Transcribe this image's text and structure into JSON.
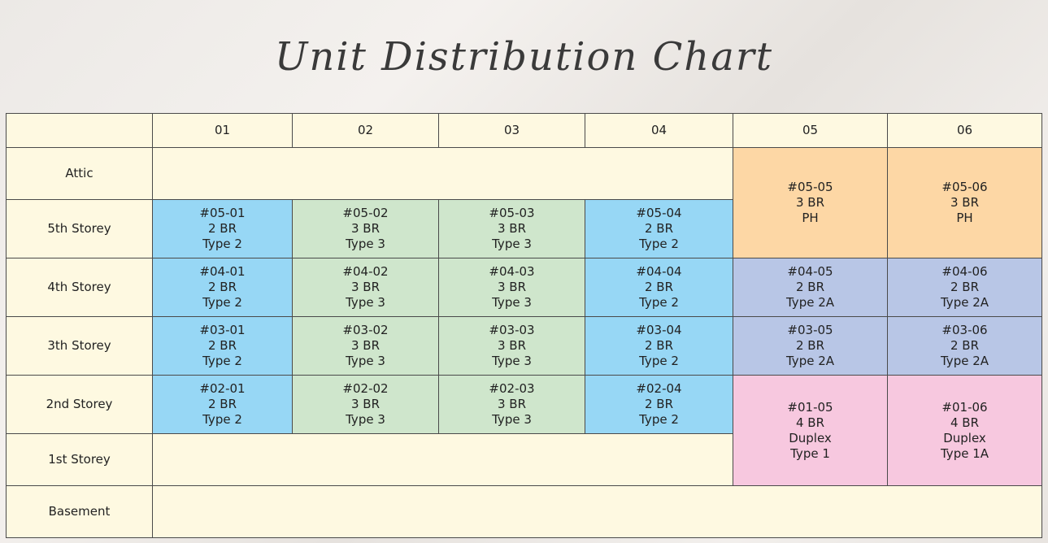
{
  "title": "Unit Distribution Chart",
  "columns": [
    "01",
    "02",
    "03",
    "04",
    "05",
    "06"
  ],
  "rows": {
    "attic": "Attic",
    "fifth": "5th Storey",
    "fourth": "4th Storey",
    "third": "3th Storey",
    "second": "2nd Storey",
    "first": "1st Storey",
    "basement": "Basement"
  },
  "units": {
    "u05_05": [
      "#05-05",
      "3 BR",
      "PH"
    ],
    "u05_06": [
      "#05-06",
      "3 BR",
      "PH"
    ],
    "u05_01": [
      "#05-01",
      "2 BR",
      "Type 2"
    ],
    "u05_02": [
      "#05-02",
      "3 BR",
      "Type 3"
    ],
    "u05_03": [
      "#05-03",
      "3 BR",
      "Type 3"
    ],
    "u05_04": [
      "#05-04",
      "2 BR",
      "Type 2"
    ],
    "u04_01": [
      "#04-01",
      "2 BR",
      "Type 2"
    ],
    "u04_02": [
      "#04-02",
      "3 BR",
      "Type 3"
    ],
    "u04_03": [
      "#04-03",
      "3 BR",
      "Type 3"
    ],
    "u04_04": [
      "#04-04",
      "2 BR",
      "Type 2"
    ],
    "u04_05": [
      "#04-05",
      "2 BR",
      "Type 2A"
    ],
    "u04_06": [
      "#04-06",
      "2 BR",
      "Type 2A"
    ],
    "u03_01": [
      "#03-01",
      "2 BR",
      "Type 2"
    ],
    "u03_02": [
      "#03-02",
      "3 BR",
      "Type 3"
    ],
    "u03_03": [
      "#03-03",
      "3 BR",
      "Type 3"
    ],
    "u03_04": [
      "#03-04",
      "2 BR",
      "Type 2"
    ],
    "u03_05": [
      "#03-05",
      "2 BR",
      "Type 2A"
    ],
    "u03_06": [
      "#03-06",
      "2 BR",
      "Type 2A"
    ],
    "u02_01": [
      "#02-01",
      "2 BR",
      "Type 2"
    ],
    "u02_02": [
      "#02-02",
      "3 BR",
      "Type 3"
    ],
    "u02_03": [
      "#02-03",
      "3 BR",
      "Type 3"
    ],
    "u02_04": [
      "#02-04",
      "2 BR",
      "Type 2"
    ],
    "u01_05": [
      "#01-05",
      "4 BR",
      "Duplex",
      "Type 1"
    ],
    "u01_06": [
      "#01-06",
      "4 BR",
      "Duplex",
      "Type 1A"
    ]
  },
  "colors": {
    "cream": "#fef9e1",
    "type2_blue": "#97d7f5",
    "type3_green": "#cfe6cc",
    "ph_orange": "#fdd7a5",
    "type2a_lavender": "#b8c6e6",
    "duplex_pink": "#f7c8df"
  }
}
